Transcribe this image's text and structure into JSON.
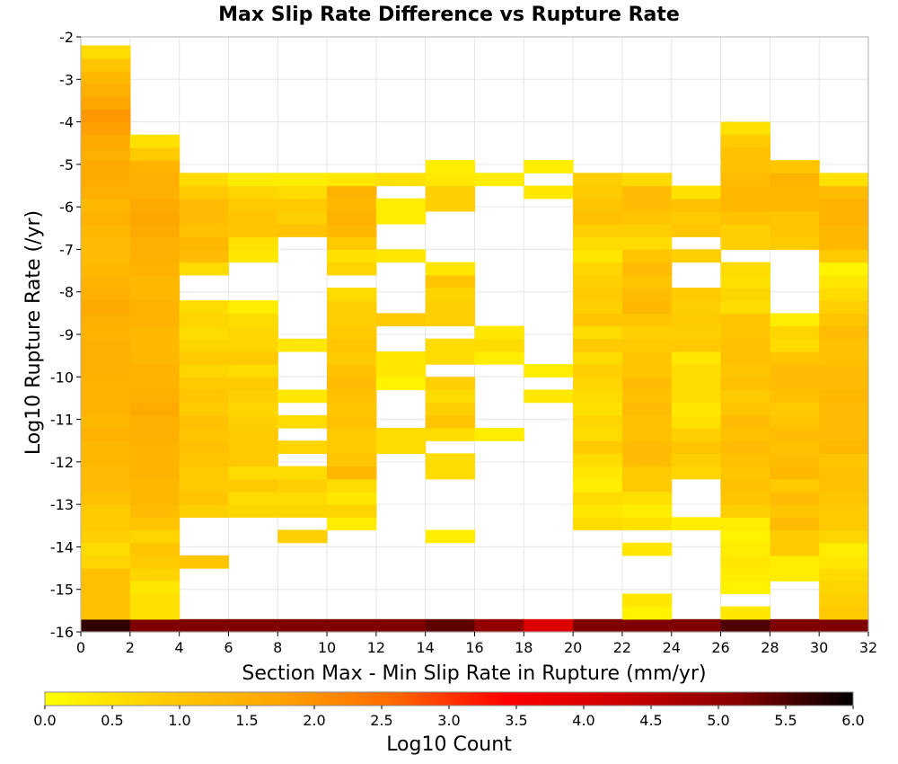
{
  "chart_data": {
    "type": "heatmap",
    "title": "Max Slip Rate Difference vs Rupture Rate",
    "xlabel": "Section Max - Min Slip Rate in Rupture (mm/yr)",
    "ylabel": "Log10 Rupture Rate (/yr)",
    "xlim": [
      0,
      32
    ],
    "ylim": [
      -16,
      -2
    ],
    "x_ticks": [
      "0",
      "2",
      "4",
      "6",
      "8",
      "10",
      "12",
      "14",
      "16",
      "18",
      "20",
      "22",
      "24",
      "26",
      "28",
      "30",
      "32"
    ],
    "y_ticks": [
      "-2",
      "-3",
      "-4",
      "-5",
      "-6",
      "-7",
      "-8",
      "-9",
      "-10",
      "-11",
      "-12",
      "-13",
      "-14",
      "-15",
      "-16"
    ],
    "cell_width": 2,
    "cell_height": 0.3,
    "colorbar": {
      "label": "Log10 Count",
      "min": 0,
      "max": 6,
      "ticks": [
        "0.0",
        "0.5",
        "1.0",
        "1.5",
        "2.0",
        "2.5",
        "3.0",
        "3.5",
        "4.0",
        "4.5",
        "5.0",
        "5.5",
        "6.0"
      ],
      "colors": [
        "#ffff00",
        "#ffcc00",
        "#ffa500",
        "#ff6a00",
        "#ff0000",
        "#cc0000",
        "#880000",
        "#000000"
      ]
    },
    "columns": [
      {
        "x0": 0,
        "values": [
          5.7,
          1.1,
          1.1,
          1.1,
          1.1,
          0.7,
          0.6,
          0.8,
          0.9,
          0.9,
          1.1,
          1.2,
          1.2,
          1.3,
          1.3,
          1.4,
          1.3,
          1.4,
          1.4,
          1.4,
          1.5,
          1.5,
          1.5,
          1.4,
          1.5,
          1.6,
          1.5,
          1.4,
          1.3,
          1.2,
          1.2,
          1.3,
          1.4,
          1.3,
          1.5,
          1.6,
          1.6,
          1.5,
          1.6,
          1.8,
          1.9,
          1.7,
          1.5,
          1.3,
          1.0,
          0.6
        ]
      },
      {
        "x0": 2,
        "values": [
          5.2,
          0.5,
          0.5,
          0.4,
          0.7,
          0.9,
          1.0,
          0.7,
          1.0,
          1.2,
          1.3,
          1.3,
          1.4,
          1.4,
          1.4,
          1.5,
          1.5,
          1.6,
          1.5,
          1.4,
          1.4,
          1.3,
          1.3,
          1.3,
          1.4,
          1.4,
          1.3,
          1.3,
          1.4,
          1.5,
          1.5,
          1.6,
          1.7,
          1.6,
          1.5,
          1.5,
          1.4,
          0.9,
          0.5
        ]
      },
      {
        "x0": 4,
        "values": [
          5.2,
          0.0,
          0,
          0,
          0,
          1.0,
          0,
          0,
          0,
          0.8,
          1.0,
          0.9,
          0.9,
          1.0,
          1.1,
          1.0,
          1.1,
          0.9,
          1.0,
          0.9,
          0.7,
          0.9,
          0.7,
          0.6,
          0.7,
          0.6,
          0,
          0,
          0.6,
          1.2,
          1.3,
          1.1,
          1.2,
          1.2,
          0.9,
          0.6
        ]
      },
      {
        "x0": 6,
        "values": [
          5.2,
          0,
          0,
          0,
          0,
          0,
          0,
          0,
          0,
          0.7,
          0.6,
          0.9,
          0.6,
          0.9,
          0.9,
          0.9,
          0.8,
          0.7,
          0.8,
          0.9,
          0.6,
          0.9,
          0.7,
          0.7,
          0.6,
          0.3,
          0,
          0,
          0,
          0.4,
          0.5,
          1.0,
          1.0,
          0.9,
          0.7,
          0.3
        ]
      },
      {
        "x0": 8,
        "values": [
          5.2,
          0,
          0,
          0,
          0,
          0,
          0,
          0.8,
          0,
          0.7,
          0.6,
          0.8,
          0.6,
          0,
          0.7,
          0,
          0.6,
          0,
          0.4,
          0,
          0,
          0,
          0.4,
          0,
          0,
          0,
          0,
          0,
          0,
          0,
          0,
          1.1,
          0.8,
          0.9,
          0.6,
          0.3
        ]
      },
      {
        "x0": 10,
        "values": [
          5.2,
          0,
          0,
          0,
          0,
          0,
          0,
          0,
          0.3,
          0.7,
          0.4,
          0.6,
          1.3,
          1.0,
          0.9,
          0.9,
          1.1,
          1.0,
          1.1,
          1.2,
          1.1,
          0.9,
          1.0,
          0.9,
          0.8,
          0.8,
          0.6,
          0,
          0.7,
          0.5,
          0.9,
          1.3,
          1.4,
          1.3,
          1.4,
          0.4
        ]
      },
      {
        "x0": 12,
        "values": [
          5.2,
          0,
          0,
          0,
          0,
          0,
          0,
          0,
          0,
          0,
          0,
          0,
          0,
          0,
          0.6,
          0.6,
          0,
          0,
          0,
          0.2,
          0.4,
          0.4,
          0,
          0,
          0.9,
          0,
          0,
          0,
          0,
          0.4,
          0,
          0,
          0.3,
          0.3,
          0,
          0.5
        ]
      },
      {
        "x0": 14,
        "values": [
          5.4,
          0,
          0,
          0,
          0,
          0,
          0,
          0.3,
          0,
          0,
          0,
          0,
          0.6,
          0.6,
          0,
          0.6,
          1.0,
          0.8,
          0.6,
          0.8,
          0,
          0.6,
          0.6,
          0,
          0.8,
          0.8,
          0.7,
          1.0,
          0.4,
          0,
          0,
          0,
          0,
          0.8,
          0.8,
          0.4,
          0.3
        ]
      },
      {
        "x0": 16,
        "values": [
          5.0,
          0,
          0,
          0,
          0,
          0,
          0,
          0,
          0,
          0,
          0,
          0,
          0,
          0,
          0,
          0.3,
          0,
          0,
          0,
          0,
          0,
          0.3,
          0.6,
          0.4,
          0,
          0,
          0,
          0,
          0,
          0,
          0,
          0,
          0,
          0,
          0,
          0.3
        ]
      },
      {
        "x0": 18,
        "values": [
          4.0,
          0,
          0,
          0,
          0,
          0,
          0,
          0,
          0,
          0,
          0,
          0,
          0,
          0,
          0,
          0,
          0,
          0,
          0.4,
          0,
          0.3,
          0,
          0,
          0,
          0,
          0,
          0,
          0,
          0,
          0,
          0,
          0,
          0,
          0,
          0.4,
          0,
          0.3
        ]
      },
      {
        "x0": 20,
        "values": [
          5.2,
          0,
          0,
          0,
          0,
          0,
          0,
          0,
          0.6,
          0.4,
          0.6,
          0.3,
          0.4,
          0.6,
          0.9,
          0.6,
          0.7,
          0.5,
          0.6,
          0.7,
          0.8,
          0.6,
          0.9,
          0.6,
          1.0,
          0.8,
          0.9,
          0.8,
          0.7,
          0.4,
          0.6,
          0.8,
          1.1,
          1.0,
          0.9,
          0.8
        ]
      },
      {
        "x0": 22,
        "values": [
          5.2,
          0.2,
          0.4,
          0,
          0,
          0,
          0.4,
          0,
          0.5,
          0.3,
          0.5,
          0.9,
          0.9,
          1.2,
          1.2,
          1.1,
          1.1,
          1.2,
          1.1,
          1.2,
          1.0,
          1.0,
          0.9,
          0.8,
          1.0,
          1.3,
          1.2,
          1.0,
          1.2,
          1.0,
          0.6,
          0.8,
          1.0,
          1.2,
          1.2,
          0.6
        ]
      },
      {
        "x0": 24,
        "values": [
          5.2,
          0,
          0,
          0,
          0,
          0,
          0,
          0,
          0.3,
          0,
          0,
          0,
          0.7,
          0.8,
          1.0,
          0.8,
          0.5,
          0.4,
          0.6,
          0.6,
          0.6,
          0.4,
          0.9,
          0.8,
          0.9,
          0.8,
          0.9,
          0,
          0,
          0.8,
          0,
          1.0,
          0.9,
          1.1,
          0.5
        ]
      },
      {
        "x0": 26,
        "values": [
          5.5,
          0.4,
          0,
          0.2,
          0.3,
          0.4,
          0.3,
          0.2,
          0.3,
          0.8,
          1.0,
          1.1,
          1.0,
          1.1,
          1.2,
          1.1,
          1.2,
          1.0,
          0.9,
          1.1,
          1.0,
          1.1,
          1.1,
          1.0,
          1.0,
          0.6,
          0.7,
          0.5,
          0.6,
          0,
          0.8,
          0.8,
          1.1,
          1.3,
          1.3,
          1.2,
          1.1,
          1.1,
          0.9,
          0.5
        ]
      },
      {
        "x0": 28,
        "values": [
          5.2,
          0,
          0,
          0,
          0.3,
          0.3,
          0.9,
          0.9,
          1.2,
          1.0,
          1.2,
          0.9,
          1.3,
          1.2,
          1.1,
          1.2,
          1.0,
          0.9,
          1.1,
          1.2,
          1.2,
          1.0,
          0.6,
          0.7,
          0.3,
          0,
          0,
          0,
          0,
          0,
          0.9,
          1.0,
          1.0,
          1.3,
          1.3,
          1.4,
          1.0
        ]
      },
      {
        "x0": 30,
        "values": [
          5.2,
          0.9,
          0.8,
          0.7,
          0.6,
          0.4,
          0.3,
          0.7,
          0.9,
          0.9,
          1.0,
          1.1,
          1.1,
          1.0,
          1.3,
          1.2,
          1.2,
          1.2,
          1.3,
          1.2,
          1.2,
          1.1,
          1.1,
          1.2,
          1.0,
          0.8,
          0.6,
          0.4,
          0.2,
          0.9,
          1.3,
          1.3,
          1.4,
          1.4,
          1.2,
          0.5
        ]
      }
    ],
    "grid": "on"
  }
}
